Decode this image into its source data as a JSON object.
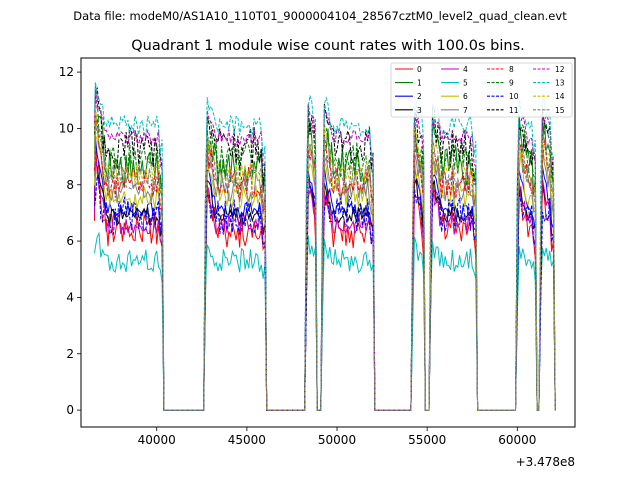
{
  "suptitle": "Data file: modeM0/AS1A10_110T01_9000004104_28567cztM0_level2_quad_clean.evt",
  "chart_data": {
    "type": "line",
    "title": "Quadrant 1 module wise count rates with 100.0s bins.",
    "xlabel": "",
    "ylabel": "",
    "x_offset_label": "+3.478e8",
    "xlim": [
      35800,
      63200
    ],
    "ylim": [
      -0.6,
      12.5
    ],
    "xticks": [
      40000,
      45000,
      50000,
      55000,
      60000
    ],
    "xtick_labels": [
      "40000",
      "45000",
      "50000",
      "55000",
      "60000"
    ],
    "yticks": [
      0,
      2,
      4,
      6,
      8,
      10,
      12
    ],
    "ytick_labels": [
      "0",
      "2",
      "4",
      "6",
      "8",
      "10",
      "12"
    ],
    "bin_size_s": 100,
    "active_intervals": [
      [
        36600,
        40300
      ],
      [
        42700,
        46000
      ],
      [
        48300,
        48800
      ],
      [
        49200,
        52000
      ],
      [
        54200,
        54800
      ],
      [
        55200,
        57700
      ],
      [
        60000,
        61000
      ],
      [
        61300,
        62000
      ]
    ],
    "legend_position": "upper-right",
    "series": [
      {
        "name": "0",
        "color": "#ff0000",
        "dash": false,
        "level": 6.4,
        "start": 9.1
      },
      {
        "name": "1",
        "color": "#008000",
        "dash": false,
        "level": 8.6,
        "start": 10.8
      },
      {
        "name": "2",
        "color": "#0000ff",
        "dash": false,
        "level": 7.1,
        "start": 9.5
      },
      {
        "name": "3",
        "color": "#000000",
        "dash": false,
        "level": 6.9,
        "start": 9.0
      },
      {
        "name": "4",
        "color": "#bf00bf",
        "dash": false,
        "level": 6.6,
        "start": 8.9
      },
      {
        "name": "5",
        "color": "#00bfbf",
        "dash": false,
        "level": 5.3,
        "start": 6.2
      },
      {
        "name": "6",
        "color": "#bfbf00",
        "dash": false,
        "level": 7.6,
        "start": 9.8
      },
      {
        "name": "7",
        "color": "#808080",
        "dash": false,
        "level": 7.9,
        "start": 10.1
      },
      {
        "name": "8",
        "color": "#ff0000",
        "dash": true,
        "level": 8.1,
        "start": 10.3
      },
      {
        "name": "9",
        "color": "#008000",
        "dash": true,
        "level": 8.9,
        "start": 10.9
      },
      {
        "name": "10",
        "color": "#0000ff",
        "dash": true,
        "level": 6.9,
        "start": 7.9
      },
      {
        "name": "11",
        "color": "#000000",
        "dash": true,
        "level": 9.3,
        "start": 11.0
      },
      {
        "name": "12",
        "color": "#bf00bf",
        "dash": true,
        "level": 9.7,
        "start": 11.2
      },
      {
        "name": "13",
        "color": "#00bfbf",
        "dash": true,
        "level": 10.1,
        "start": 11.7
      },
      {
        "name": "14",
        "color": "#bfbf00",
        "dash": true,
        "level": 8.4,
        "start": 10.6
      },
      {
        "name": "15",
        "color": "#808080",
        "dash": true,
        "level": 8.3,
        "start": 10.4
      }
    ]
  }
}
